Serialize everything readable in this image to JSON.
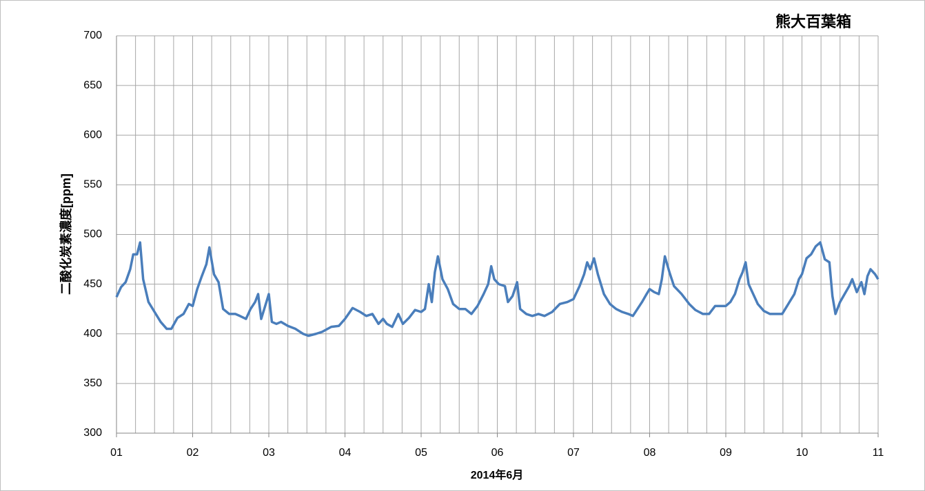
{
  "chart_data": {
    "type": "line",
    "title": "熊大百葉箱",
    "xlabel": "2014年6月",
    "ylabel": "二酸化炭素濃度[ppm]",
    "x": [
      1.0,
      1.06,
      1.12,
      1.18,
      1.22,
      1.27,
      1.31,
      1.35,
      1.42,
      1.5,
      1.58,
      1.66,
      1.72,
      1.8,
      1.88,
      1.95,
      2.0,
      2.06,
      2.12,
      2.18,
      2.22,
      2.28,
      2.34,
      2.4,
      2.48,
      2.56,
      2.62,
      2.7,
      2.76,
      2.82,
      2.86,
      2.9,
      2.96,
      3.0,
      3.04,
      3.1,
      3.16,
      3.25,
      3.35,
      3.45,
      3.52,
      3.62,
      3.7,
      3.82,
      3.92,
      4.0,
      4.1,
      4.2,
      4.28,
      4.36,
      4.44,
      4.5,
      4.55,
      4.62,
      4.7,
      4.76,
      4.84,
      4.92,
      5.0,
      5.05,
      5.1,
      5.14,
      5.18,
      5.22,
      5.28,
      5.35,
      5.42,
      5.5,
      5.58,
      5.66,
      5.74,
      5.82,
      5.88,
      5.92,
      5.96,
      6.02,
      6.1,
      6.14,
      6.2,
      6.26,
      6.3,
      6.38,
      6.46,
      6.54,
      6.62,
      6.72,
      6.82,
      6.92,
      7.0,
      7.08,
      7.14,
      7.18,
      7.22,
      7.27,
      7.32,
      7.4,
      7.48,
      7.56,
      7.64,
      7.72,
      7.78,
      7.84,
      7.9,
      7.96,
      8.0,
      8.06,
      8.12,
      8.16,
      8.2,
      8.26,
      8.32,
      8.42,
      8.52,
      8.6,
      8.7,
      8.78,
      8.86,
      8.94,
      9.0,
      9.06,
      9.12,
      9.18,
      9.22,
      9.26,
      9.3,
      9.36,
      9.42,
      9.5,
      9.58,
      9.66,
      9.74,
      9.82,
      9.9,
      9.96,
      10.0,
      10.06,
      10.12,
      10.18,
      10.24,
      10.3,
      10.36,
      10.4,
      10.44,
      10.5,
      10.56,
      10.62,
      10.66,
      10.72,
      10.78,
      10.82,
      10.86,
      10.9,
      10.96,
      11.0
    ],
    "series": [
      {
        "color": "#4a7ebb",
        "values": [
          437,
          447,
          452,
          465,
          480,
          480,
          492,
          455,
          432,
          422,
          412,
          405,
          405,
          416,
          420,
          430,
          428,
          445,
          458,
          470,
          487,
          460,
          452,
          425,
          420,
          420,
          418,
          415,
          425,
          432,
          440,
          415,
          430,
          440,
          412,
          410,
          412,
          408,
          405,
          400,
          398,
          400,
          402,
          407,
          408,
          415,
          426,
          422,
          418,
          420,
          410,
          415,
          410,
          407,
          420,
          410,
          416,
          424,
          422,
          425,
          450,
          432,
          462,
          478,
          455,
          445,
          430,
          425,
          425,
          420,
          428,
          440,
          450,
          468,
          455,
          450,
          448,
          432,
          438,
          452,
          425,
          420,
          418,
          420,
          418,
          422,
          430,
          432,
          435,
          448,
          460,
          472,
          465,
          476,
          460,
          440,
          430,
          425,
          422,
          420,
          418,
          425,
          432,
          440,
          445,
          442,
          440,
          455,
          478,
          462,
          448,
          440,
          430,
          424,
          420,
          420,
          428,
          428,
          428,
          432,
          440,
          455,
          462,
          472,
          450,
          440,
          430,
          423,
          420,
          420,
          420,
          430,
          440,
          455,
          460,
          476,
          480,
          488,
          492,
          475,
          472,
          438,
          420,
          432,
          440,
          448,
          455,
          442,
          452,
          440,
          458,
          465,
          460,
          455
        ]
      }
    ],
    "xlim": [
      1,
      11
    ],
    "xticks": [
      {
        "value": 1,
        "label": "01"
      },
      {
        "value": 2,
        "label": "02"
      },
      {
        "value": 3,
        "label": "03"
      },
      {
        "value": 4,
        "label": "04"
      },
      {
        "value": 5,
        "label": "05"
      },
      {
        "value": 6,
        "label": "06"
      },
      {
        "value": 7,
        "label": "07"
      },
      {
        "value": 8,
        "label": "08"
      },
      {
        "value": 9,
        "label": "09"
      },
      {
        "value": 10,
        "label": "10"
      },
      {
        "value": 11,
        "label": "11"
      }
    ],
    "x_minor_grid_step": 0.25,
    "ylim": [
      300,
      700
    ],
    "yticks": [
      300,
      350,
      400,
      450,
      500,
      550,
      600,
      650,
      700
    ],
    "grid": true
  }
}
